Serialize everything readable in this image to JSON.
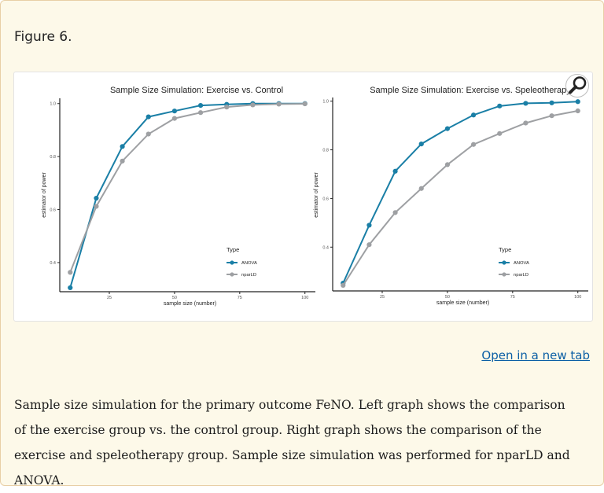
{
  "figure": {
    "label": "Figure 6.",
    "open_link": "Open in a new tab",
    "caption": "Sample size simulation for the primary outcome FeNO. Left graph shows the comparison of the exercise group vs. the control group. Right graph shows the comparison of the exercise and speleotherapy group. Sample size simulation was performed for nparLD and ANOVA."
  },
  "icons": {
    "zoom": "magnifier-icon"
  },
  "colors": {
    "panel_bg": "#fdf9e9",
    "panel_border": "#e8cfa6",
    "anova": "#1a7fa6",
    "nparld": "#9ea0a3",
    "link": "#0b5fa5"
  },
  "chart_data": [
    {
      "type": "line",
      "title": "Sample Size Simulation: Exercise vs. Control",
      "xlabel": "sample size (number)",
      "ylabel": "estimator of power",
      "xlim": [
        6,
        104
      ],
      "ylim": [
        0.29,
        1.02
      ],
      "xticks": [
        25,
        50,
        75,
        100
      ],
      "yticks": [
        0.4,
        0.6,
        0.8,
        1.0
      ],
      "ytick_labels": [
        "0.4",
        "0.6",
        "0.8",
        "1.0"
      ],
      "x": [
        10,
        20,
        30,
        40,
        50,
        60,
        70,
        80,
        90,
        100
      ],
      "legend_title": "Type",
      "legend_position": "right",
      "grid": false,
      "series": [
        {
          "name": "ANOVA",
          "color": "#1a7fa6",
          "values": [
            0.305,
            0.643,
            0.838,
            0.95,
            0.972,
            0.993,
            0.997,
            1.0,
            1.0,
            1.0
          ]
        },
        {
          "name": "nparLD",
          "color": "#9ea0a3",
          "values": [
            0.363,
            0.612,
            0.783,
            0.885,
            0.944,
            0.966,
            0.987,
            0.995,
            0.998,
            0.999
          ]
        }
      ]
    },
    {
      "type": "line",
      "title": "Sample Size Simulation: Exercise vs. Speleotherapy",
      "xlabel": "sample size (number)",
      "ylabel": "estimator of power",
      "xlim": [
        6,
        104
      ],
      "ylim": [
        0.22,
        1.015
      ],
      "xticks": [
        25,
        50,
        75,
        100
      ],
      "yticks": [
        0.4,
        0.6,
        0.8,
        1.0
      ],
      "ytick_labels": [
        "0.4",
        "0.6",
        "0.8",
        "1.0"
      ],
      "x": [
        10,
        20,
        30,
        40,
        50,
        60,
        70,
        80,
        90,
        100
      ],
      "legend_title": "Type",
      "legend_position": "right",
      "grid": false,
      "series": [
        {
          "name": "ANOVA",
          "color": "#1a7fa6",
          "values": [
            0.252,
            0.49,
            0.712,
            0.824,
            0.887,
            0.943,
            0.98,
            0.991,
            0.993,
            0.998
          ]
        },
        {
          "name": "nparLD",
          "color": "#9ea0a3",
          "values": [
            0.243,
            0.41,
            0.542,
            0.641,
            0.739,
            0.822,
            0.867,
            0.91,
            0.94,
            0.96
          ]
        }
      ]
    }
  ]
}
